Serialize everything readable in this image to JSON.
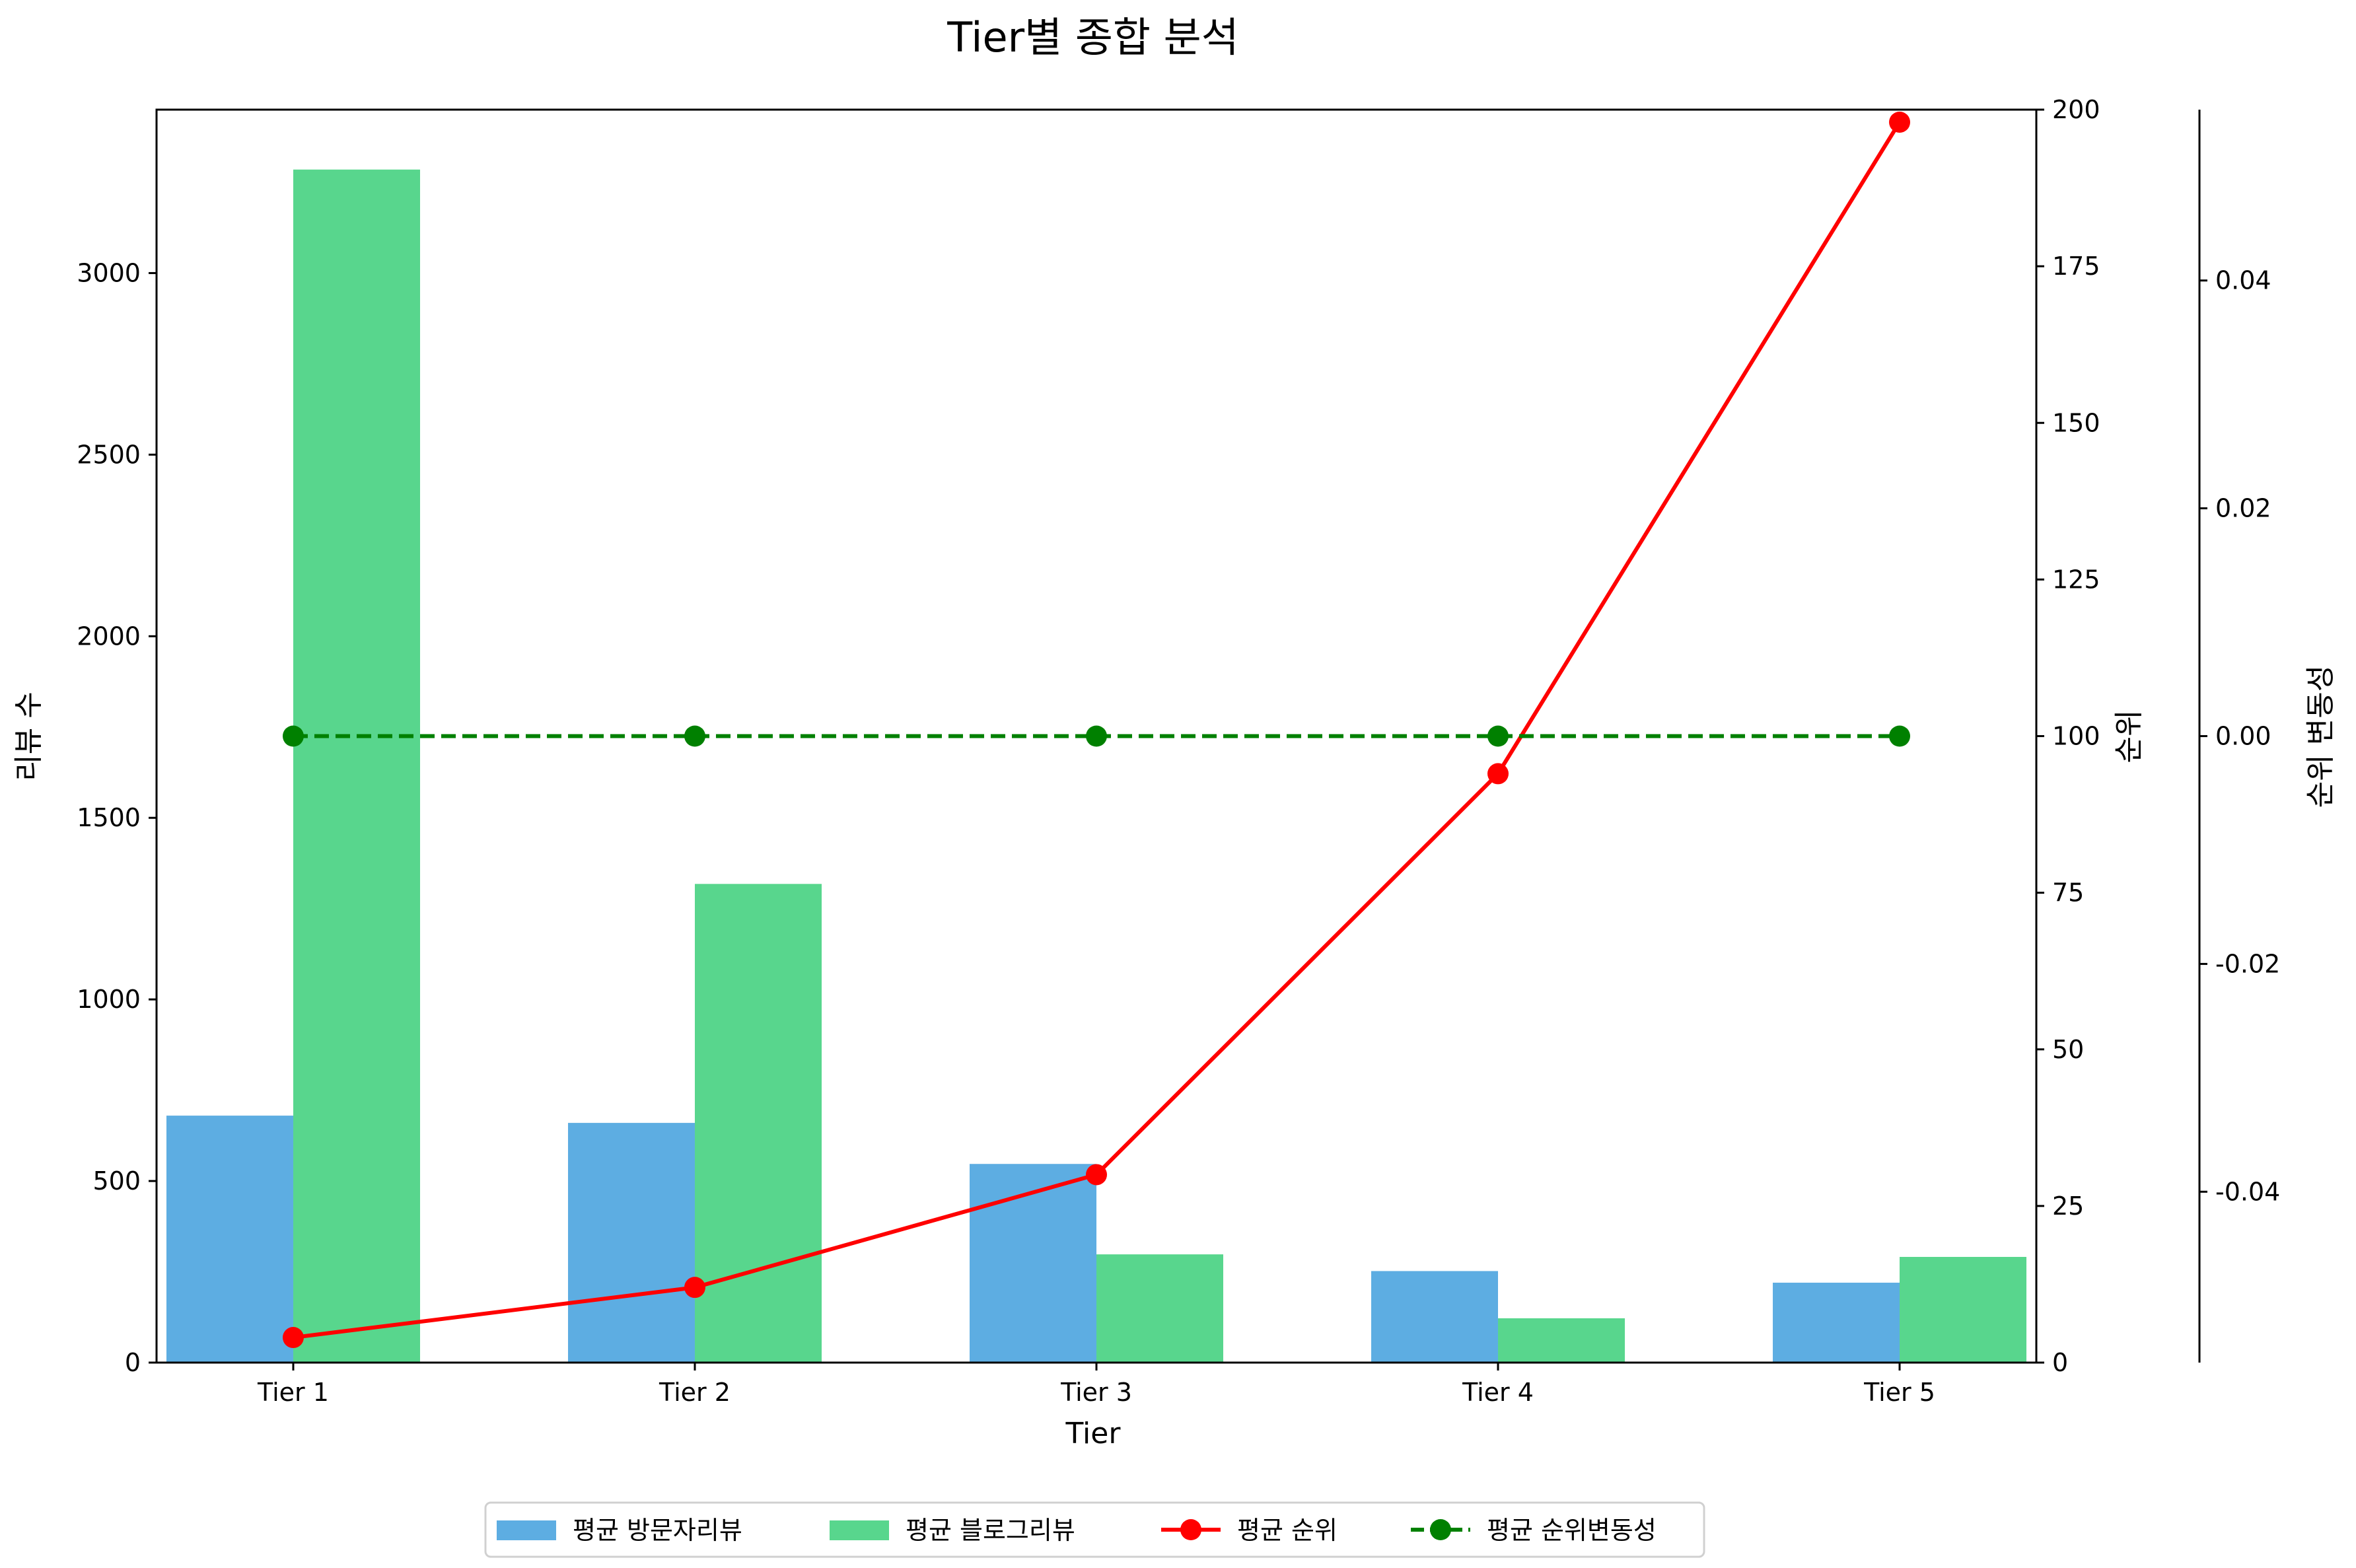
{
  "chart_data": {
    "type": "bar",
    "title": "Tier별 종합 분석",
    "xlabel": "Tier",
    "categories": [
      "Tier 1",
      "Tier 2",
      "Tier 3",
      "Tier 4",
      "Tier 5"
    ],
    "axes": {
      "left": {
        "label": "리뷰 수",
        "ylim": [
          0,
          3450
        ],
        "ticks": [
          0,
          500,
          1000,
          1500,
          2000,
          2500,
          3000
        ],
        "tick_labels": [
          "0",
          "500",
          "1000",
          "1500",
          "2000",
          "2500",
          "3000"
        ]
      },
      "right": {
        "label": "순위",
        "ylim": [
          0,
          200
        ],
        "ticks": [
          0,
          25,
          50,
          75,
          100,
          125,
          150,
          175,
          200
        ],
        "tick_labels": [
          "0",
          "25",
          "50",
          "75",
          "100",
          "125",
          "150",
          "175",
          "200"
        ]
      },
      "right2": {
        "label": "순위 변동성",
        "ylim": [
          -0.055,
          0.055
        ],
        "ticks": [
          -0.04,
          -0.02,
          0.0,
          0.02,
          0.04
        ],
        "tick_labels": [
          "-0.04",
          "-0.02",
          "0.00",
          "0.02",
          "0.04"
        ]
      }
    },
    "series": [
      {
        "name": "평균 방문자리뷰",
        "type": "bar",
        "axis": "left",
        "color": "#5DADE2",
        "values": [
          680,
          660,
          547,
          252,
          220
        ]
      },
      {
        "name": "평균 블로그리뷰",
        "type": "bar",
        "axis": "left",
        "color": "#58D68D",
        "values": [
          3285,
          1318,
          298,
          122,
          291
        ]
      },
      {
        "name": "평균 순위",
        "type": "line",
        "axis": "right",
        "color": "#FF0000",
        "linestyle": "solid",
        "marker": "circle",
        "values": [
          4,
          12,
          30,
          94,
          198
        ]
      },
      {
        "name": "평균 순위변동성",
        "type": "line",
        "axis": "right2",
        "color": "#008000",
        "linestyle": "dashed",
        "marker": "circle",
        "values": [
          0.0,
          0.0,
          0.0,
          0.0,
          0.0
        ]
      }
    ],
    "legend": {
      "position": "bottom-center",
      "ncol": 4
    },
    "grid": false
  }
}
